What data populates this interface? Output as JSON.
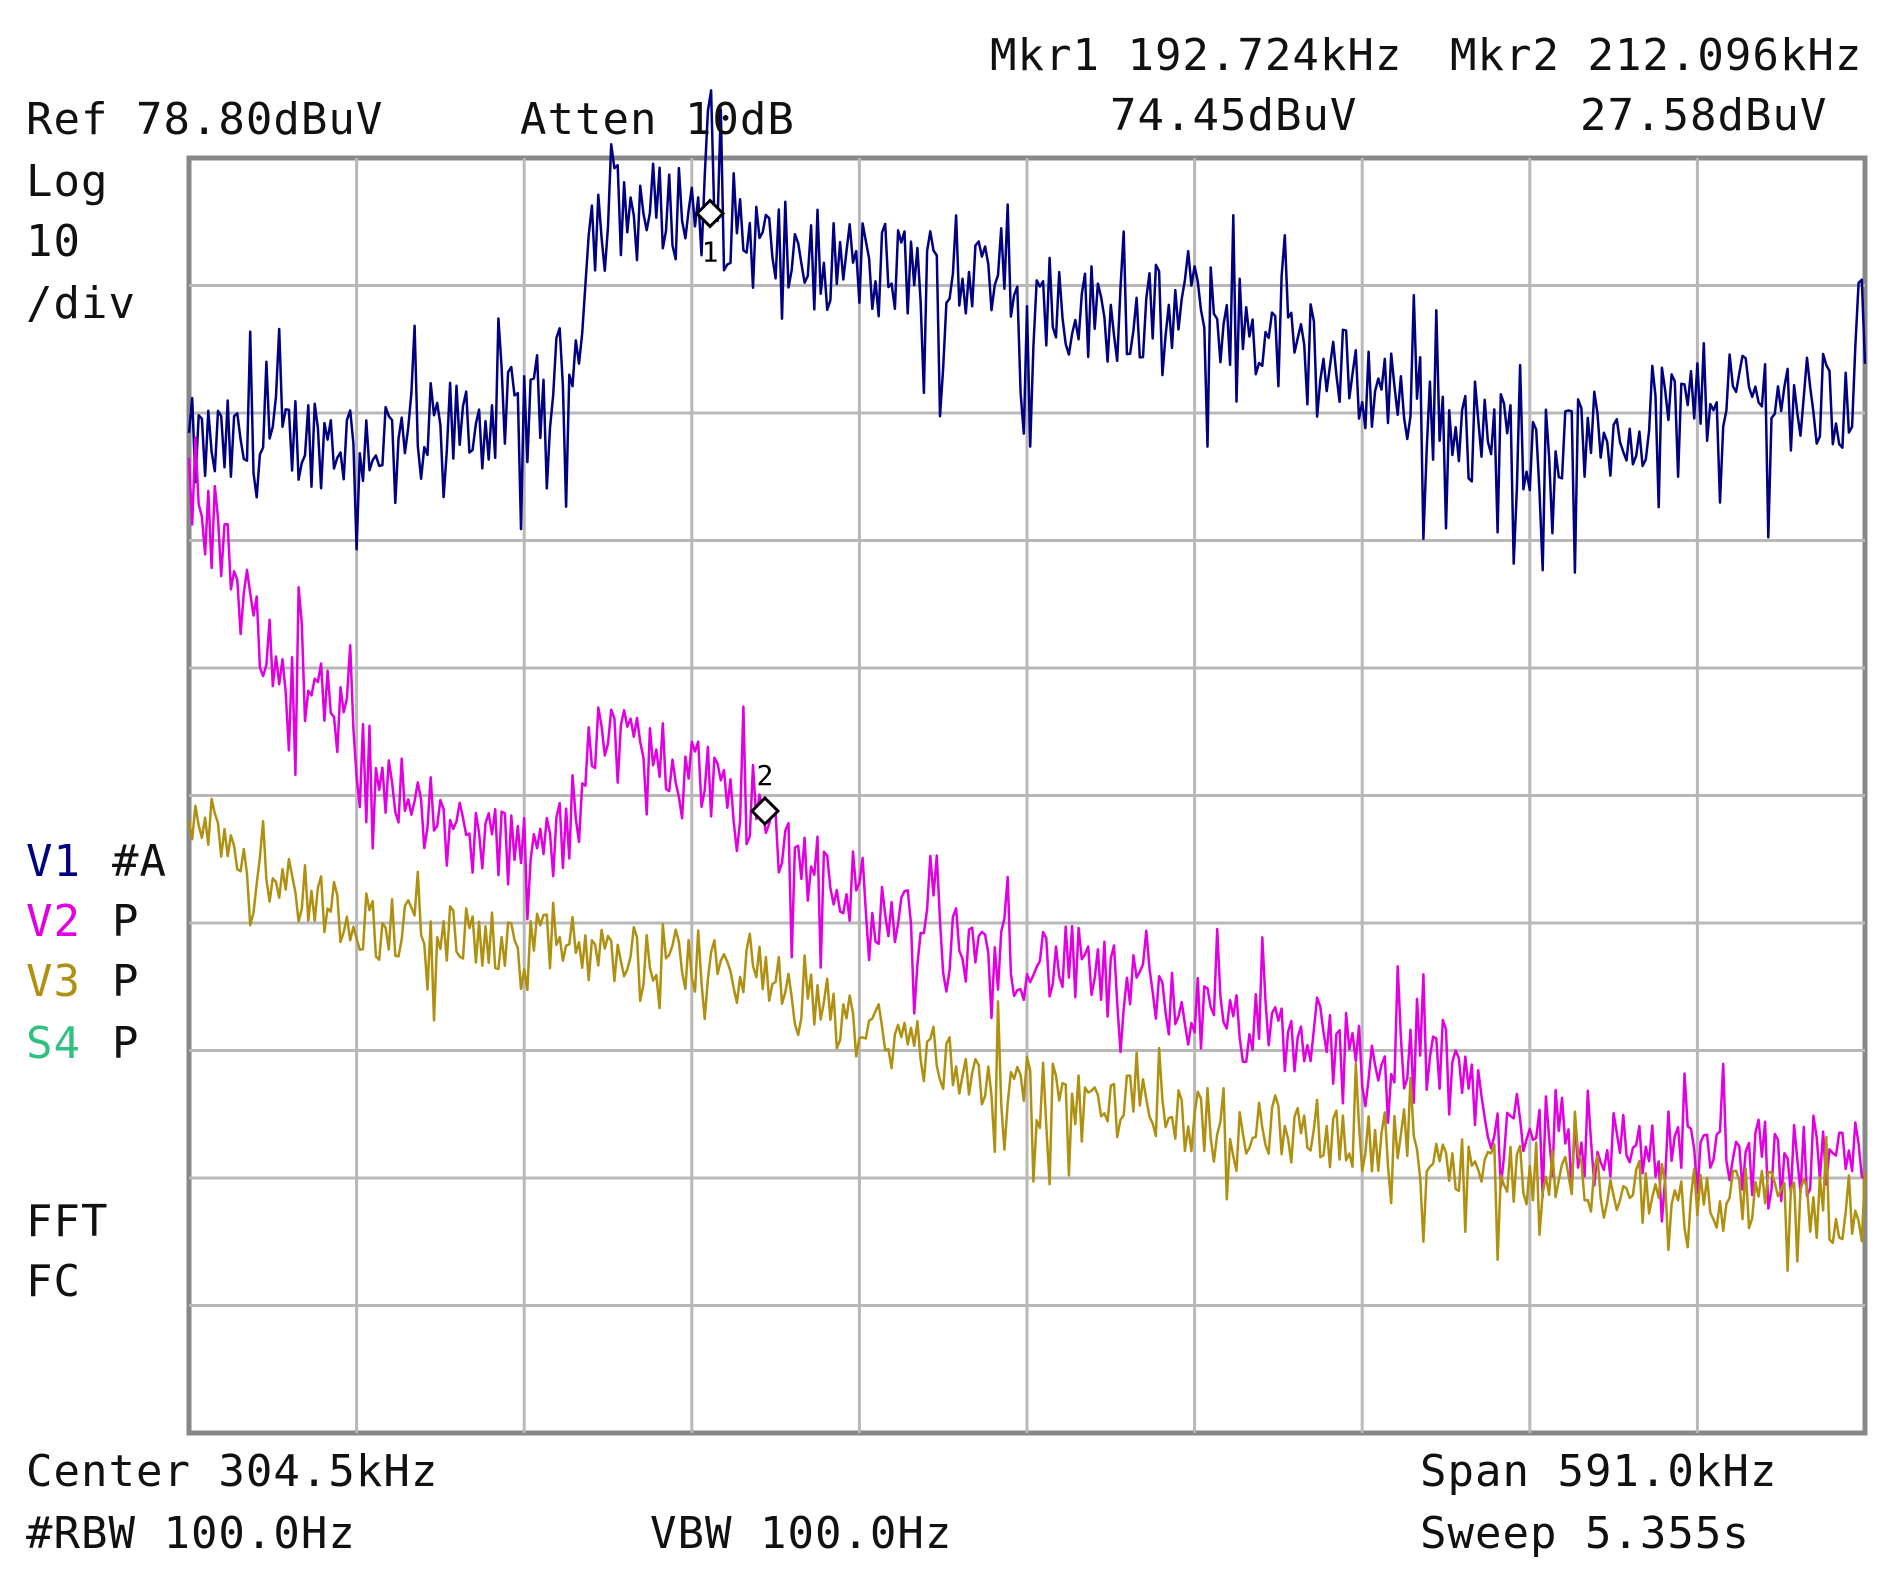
{
  "header": {
    "ref": "Ref 78.80dBuV",
    "atten": "Atten 10dB",
    "mkr1_freq": "Mkr1 192.724kHz",
    "mkr1_level": "74.45dBuV",
    "mkr2_freq": "Mkr2 212.096kHz",
    "mkr2_level": "27.58dBuV"
  },
  "scale": {
    "line1": "Log",
    "line2": "10",
    "line3": "/div"
  },
  "traces": [
    {
      "label": "V1",
      "mode": "#A",
      "color": "#000080"
    },
    {
      "label": "V2",
      "mode": "P",
      "color": "#e000e0"
    },
    {
      "label": "V3",
      "mode": "P",
      "color": "#b09010"
    },
    {
      "label": "S4",
      "mode": "P",
      "color": "#30c080"
    }
  ],
  "misc": {
    "fft": "FFT",
    "fc": "FC"
  },
  "footer": {
    "center": "Center 304.5kHz",
    "span": "Span 591.0kHz",
    "rbw": "#RBW 100.0Hz",
    "vbw": "VBW 100.0Hz",
    "sweep": "Sweep 5.355s"
  },
  "chart_data": {
    "type": "line",
    "x_unit": "kHz",
    "y_unit": "dBuV",
    "xlim": [
      9.0,
      600.0
    ],
    "ylim": [
      -21.2,
      78.8
    ],
    "grid": true,
    "x": [
      9,
      30,
      50,
      70,
      90,
      110,
      130,
      145,
      150,
      155,
      165,
      180,
      195,
      210,
      225,
      240,
      260,
      280,
      300,
      320,
      340,
      360,
      380,
      400,
      420,
      440,
      455,
      470,
      490,
      510,
      530,
      550,
      570,
      590,
      600
    ],
    "series": [
      {
        "name": "V1",
        "color": "#000080",
        "values": [
          56,
          56,
          57,
          56.5,
          57,
          58,
          59,
          63,
          73,
          75,
          74.5,
          74.8,
          75,
          72,
          71,
          70.5,
          70,
          69.5,
          67.5,
          67,
          66.5,
          66.8,
          66,
          63,
          61.5,
          60,
          58,
          57,
          56,
          57,
          59,
          61,
          60,
          59,
          62
        ]
      },
      {
        "name": "V2",
        "color": "#e000e0",
        "values": [
          56,
          42,
          38,
          32,
          28,
          25.5,
          24.5,
          25.5,
          34,
          33,
          33,
          31.5,
          30,
          27,
          24,
          22,
          19,
          17,
          16,
          15.5,
          13.5,
          12,
          10.5,
          9.5,
          9,
          8,
          6,
          3,
          2,
          1.5,
          1,
          0.5,
          0.5,
          0.5,
          0.5
        ]
      },
      {
        "name": "V3",
        "color": "#b09010",
        "values": [
          28,
          24,
          21,
          19,
          18,
          17.5,
          17,
          17,
          16.5,
          16,
          16.5,
          16,
          15.5,
          14.5,
          13,
          11,
          9.5,
          7.5,
          6,
          5,
          4.5,
          3.5,
          3,
          2.5,
          2,
          1,
          0.5,
          -0.5,
          -1,
          -2,
          -2.5,
          -3,
          -3,
          -3.5,
          -3
        ]
      }
    ],
    "markers": [
      {
        "label": "1",
        "x": 192.724,
        "y": 74.45
      },
      {
        "label": "2",
        "x": 212.096,
        "y": 27.58
      }
    ]
  }
}
